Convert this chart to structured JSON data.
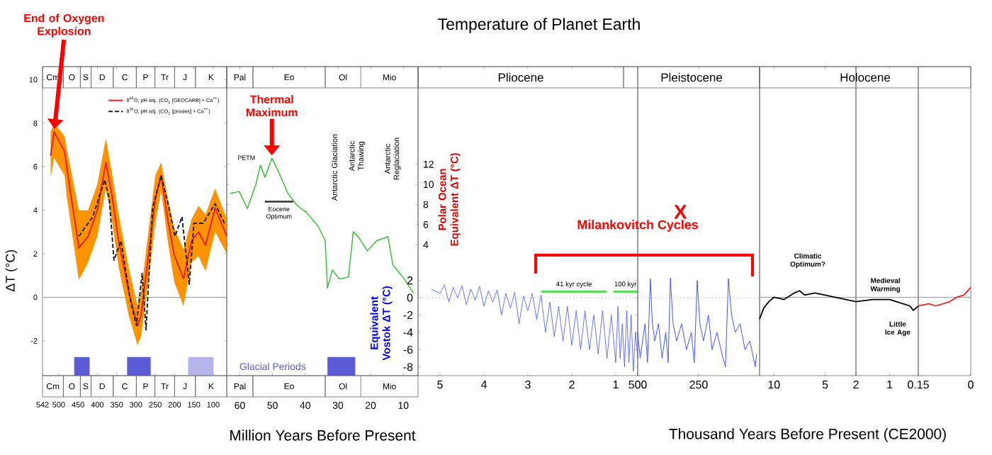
{
  "chart_data": [
    {
      "type": "line",
      "ylabel": "ΔT (°C)",
      "xlim": [
        542,
        65
      ],
      "xticks": [
        542,
        500,
        450,
        400,
        350,
        300,
        250,
        200,
        150,
        100
      ],
      "ylim": [
        -3.6,
        10.6
      ],
      "yticks": [
        -2,
        0,
        2,
        4,
        6,
        8,
        10
      ],
      "legend": "top right",
      "series": [
        {
          "name": "δ$^{18}$O, pH adj. (CO$_{2}$ [GEOCARB] + Ca$^{++}$)",
          "color": "#e8202a",
          "x": [
            521,
            512,
            485,
            479,
            448,
            424,
            400,
            378,
            363,
            345,
            318,
            296,
            287,
            266,
            250,
            235,
            217,
            201,
            177,
            156,
            138,
            120,
            95,
            65
          ],
          "values": [
            6.5,
            7.6,
            6.7,
            5.95,
            2.27,
            2.8,
            4.0,
            6.2,
            4.76,
            2.6,
            0.2,
            -1.3,
            -0.86,
            2.2,
            4.5,
            5.6,
            3.5,
            1.95,
            0.86,
            2.6,
            3.0,
            2.4,
            4.1,
            2.8
          ],
          "upper": [
            7.6,
            8.0,
            7.4,
            6.8,
            4.0,
            4.0,
            5.2,
            7.3,
            5.8,
            3.8,
            1.3,
            -0.4,
            0.2,
            3.3,
            5.6,
            6.2,
            4.5,
            3.2,
            2.2,
            3.6,
            4.2,
            3.8,
            5.0,
            3.6
          ],
          "lower": [
            5.5,
            6.4,
            5.6,
            4.6,
            0.8,
            1.6,
            2.8,
            5.0,
            3.6,
            1.4,
            -0.9,
            -2.2,
            -1.8,
            1.0,
            3.4,
            4.9,
            2.5,
            0.7,
            -0.4,
            1.6,
            1.9,
            1.2,
            3.0,
            2.0
          ]
        },
        {
          "name": "δ$^{18}$O, pH adj. (CO$_{2}$ [proxies] + Ca$^{++}$)",
          "color": "#222222",
          "line_style": "dashed",
          "x": [
            448,
            412,
            381,
            369,
            357,
            339,
            314,
            299,
            284,
            274,
            257,
            235,
            217,
            199,
            181,
            162,
            150,
            126,
            95,
            71
          ],
          "values": [
            2.8,
            3.7,
            5.4,
            4.5,
            1.7,
            2.6,
            -0.2,
            -1.3,
            1.1,
            -1.5,
            4.1,
            5.6,
            4.3,
            2.8,
            3.7,
            0.6,
            3.4,
            3.4,
            4.3,
            3.4
          ]
        }
      ],
      "bands": [
        {
          "axis": "x",
          "from": 460,
          "to": 420,
          "color": "#5b5bd6"
        },
        {
          "axis": "x",
          "from": 323,
          "to": 262,
          "color": "#5b5bd6"
        },
        {
          "axis": "x",
          "from": 165,
          "to": 99,
          "color": "#b4b4ea"
        }
      ],
      "ref_lines": [
        {
          "axis": "y",
          "value": 0,
          "color": "#999999"
        }
      ],
      "annotations": [
        {
          "text": "End of Oxygen Explosion",
          "x": 512,
          "y": 7.6
        },
        "Cm",
        "O",
        "S",
        "D",
        "C",
        "P",
        "Tr",
        "J",
        "K"
      ]
    },
    {
      "type": "line",
      "xlabel": "Million Years Before Present",
      "ylabel": "Polar Ocean Equivalent ΔT (°C)",
      "xlim": [
        64,
        5.5
      ],
      "xticks": [
        60,
        50,
        40,
        30,
        20,
        10
      ],
      "ylim": [
        -9,
        21.7
      ],
      "yticks": [
        4,
        6,
        8,
        10,
        12
      ],
      "series": [
        {
          "color": "#2ebf2e",
          "x": [
            63,
            60.2,
            57.7,
            55.1,
            53.7,
            52.3,
            50.2,
            48.1,
            45.3,
            42.5,
            39.6,
            36,
            33.9,
            33.2,
            31.7,
            29.6,
            26.8,
            25.3,
            23.8,
            21,
            18.2,
            14.7,
            13.2,
            9.7,
            6.9
          ],
          "values": [
            9.1,
            9.3,
            7.6,
            10.0,
            11.9,
            10.7,
            12.6,
            11.2,
            9.1,
            7.9,
            7.2,
            5.8,
            4.4,
            -0.3,
            1.5,
            0.6,
            0.8,
            5.3,
            4.8,
            3.4,
            4.4,
            4.8,
            2.0,
            0.6,
            -0.8
          ]
        }
      ],
      "bands": [
        {
          "axis": "x",
          "from": 33.2,
          "to": 24.7,
          "color": "#5b5bd6",
          "label": "Glacial Periods"
        }
      ],
      "annotations": [
        {
          "text": "Thermal Maximum",
          "x": 50.2,
          "y": 12.6
        },
        {
          "text": "PETM",
          "x": 53.7,
          "y": 11.9
        },
        "Eocene Optimum",
        "Antarctic Glaciation",
        "Antarctic Thawing",
        "Antarctic Reglaciation",
        "Pal",
        "Eo",
        "Ol",
        "Mio"
      ]
    },
    {
      "type": "line",
      "title": "Temperature of Planet Earth",
      "ylabel": "Equivalent Vostok ΔT (°C)",
      "xlim": [
        5.5,
        0.5
      ],
      "xticks": [
        5,
        4,
        3,
        2,
        1
      ],
      "ylim": [
        -9,
        26.7
      ],
      "yticks": [
        2,
        0,
        -2,
        -4,
        -6,
        -8
      ],
      "series": [
        {
          "color": "#4455ee",
          "x": [
            5.2,
            5.0,
            4.9,
            4.8,
            4.7,
            4.6,
            4.5,
            4.4,
            4.3,
            4.2,
            4.1,
            4.0,
            3.9,
            3.8,
            3.7,
            3.6,
            3.5,
            3.4,
            3.3,
            3.2,
            3.1,
            3.0,
            2.9,
            2.8,
            2.7,
            2.6,
            2.5,
            2.4,
            2.3,
            2.2,
            2.1,
            2.0,
            1.9,
            1.8,
            1.7,
            1.6,
            1.5,
            1.4,
            1.3,
            1.2,
            1.1,
            1.0,
            0.95,
            0.9,
            0.85,
            0.8,
            0.75,
            0.7,
            0.65,
            0.6,
            0.55,
            0.5
          ],
          "values": [
            1.0,
            0.5,
            1.5,
            -0.5,
            1.2,
            0,
            1.4,
            -0.8,
            1.0,
            -0.3,
            1.3,
            -1.0,
            0.8,
            -0.5,
            0.9,
            -2.0,
            0.5,
            -1.2,
            0.6,
            -3.0,
            0.2,
            -1.5,
            0.5,
            -2.5,
            0.3,
            -4.0,
            -0.5,
            -4.5,
            -1.0,
            -5.0,
            -1.0,
            -5.5,
            -1.5,
            -6.0,
            -1.5,
            -6.0,
            -2.0,
            -6.5,
            -1.5,
            -7.0,
            -2.0,
            -7.5,
            -1.0,
            -7.0,
            -3.0,
            -8.0,
            -1.5,
            -7.5,
            -2.0,
            -8.5,
            -4.0,
            -7.0
          ]
        },
        {
          "color": "#33dd33",
          "x": [
            2.7,
            1.2
          ],
          "values": [
            0.7,
            0.7
          ]
        },
        {
          "color": "#33dd33",
          "x": [
            1.05,
            0.5
          ],
          "values": [
            0.7,
            0.7
          ]
        }
      ],
      "ref_lines": [
        {
          "axis": "y",
          "value": 0,
          "color": "#999999",
          "line_style": "dotted"
        }
      ],
      "annotations": [
        "Milankovitch Cycles",
        {
          "text": "41 kyr cycle",
          "x": 1.95,
          "y": 0.7
        },
        {
          "text": "100 kyr",
          "x": 0.78,
          "y": 0.7
        },
        "Pliocene"
      ]
    },
    {
      "type": "line",
      "xlim": [
        500,
        0
      ],
      "xticks": [
        500,
        250
      ],
      "ylim": [
        -9,
        26.7
      ],
      "tick_labels": "x",
      "series": [
        {
          "color": "#4455ee",
          "x": [
            500,
            490,
            470,
            460,
            448,
            440,
            430,
            415,
            400,
            385,
            375,
            366,
            355,
            340,
            320,
            300,
            280,
            268,
            256,
            245,
            230,
            210,
            195,
            175,
            150,
            140,
            128,
            115,
            100,
            80,
            60,
            40,
            25,
            18,
            12
          ],
          "values": [
            -4,
            -7,
            -3,
            -7.5,
            2.2,
            -3,
            -5,
            -3,
            -7,
            -4,
            -7.5,
            2.3,
            -3,
            -5,
            -3,
            -6,
            -4,
            -7.5,
            2.0,
            -3,
            -5,
            -2,
            -6,
            -4,
            -7,
            -8,
            2.2,
            -2,
            -4,
            -3,
            -6,
            -5,
            -7,
            -8,
            -6.5
          ]
        }
      ],
      "ref_lines": [
        {
          "axis": "y",
          "value": 0,
          "color": "#999999",
          "line_style": "dotted"
        }
      ],
      "annotations": [
        "X",
        "Pleistocene"
      ]
    },
    {
      "type": "line",
      "xlabel": "Thousand Years Before Present (CE2000)",
      "xlim": [
        11.4,
        2
      ],
      "xticks": [
        10,
        5
      ],
      "ylim": [
        -3.6,
        10.6
      ],
      "tick_labels": "x",
      "series": [
        {
          "color": "#000000",
          "x": [
            11.4,
            11,
            10.5,
            10,
            9,
            8,
            7.5,
            7,
            6,
            5,
            4,
            3,
            2
          ],
          "values": [
            -1.0,
            -0.5,
            -0.2,
            0.0,
            -0.1,
            0.2,
            0.3,
            0.1,
            0.2,
            0.1,
            0.0,
            -0.1,
            -0.2
          ]
        }
      ],
      "ref_lines": [
        {
          "axis": "y",
          "value": 0,
          "color": "#999999"
        }
      ],
      "annotations": [
        "Climatic Optimum?"
      ]
    },
    {
      "type": "line",
      "xlim": [
        2,
        0.15
      ],
      "xticks": [
        2,
        1
      ],
      "ylim": [
        -3.6,
        10.6
      ],
      "tick_labels": "x",
      "series": [
        {
          "color": "#000000",
          "x": [
            2,
            1.5,
            1,
            0.8,
            0.6,
            0.4,
            0.3,
            0.15
          ],
          "values": [
            -0.2,
            -0.1,
            -0.1,
            -0.2,
            -0.3,
            -0.4,
            -0.6,
            -0.4
          ]
        }
      ],
      "ref_lines": [
        {
          "axis": "y",
          "value": 0,
          "color": "#999999"
        }
      ],
      "annotations": [
        {
          "text": "Medieval Warming",
          "x": 1.0,
          "y": -0.1
        },
        {
          "text": "Little Ice Age",
          "x": 0.3,
          "y": -0.6
        },
        "Holocene"
      ]
    },
    {
      "type": "line",
      "xlim": [
        0.15,
        0
      ],
      "xticks": [
        0.15,
        0
      ],
      "ylim": [
        -3.6,
        10.6
      ],
      "tick_labels": "x",
      "series": [
        {
          "color": "#ee2222",
          "x": [
            0.15,
            0.12,
            0.1,
            0.08,
            0.06,
            0.04,
            0.02,
            0
          ],
          "values": [
            -0.4,
            -0.3,
            -0.4,
            -0.3,
            -0.2,
            0.0,
            0.1,
            0.45
          ]
        }
      ],
      "ref_lines": [
        {
          "axis": "y",
          "value": 0,
          "color": "#999999"
        }
      ]
    }
  ]
}
